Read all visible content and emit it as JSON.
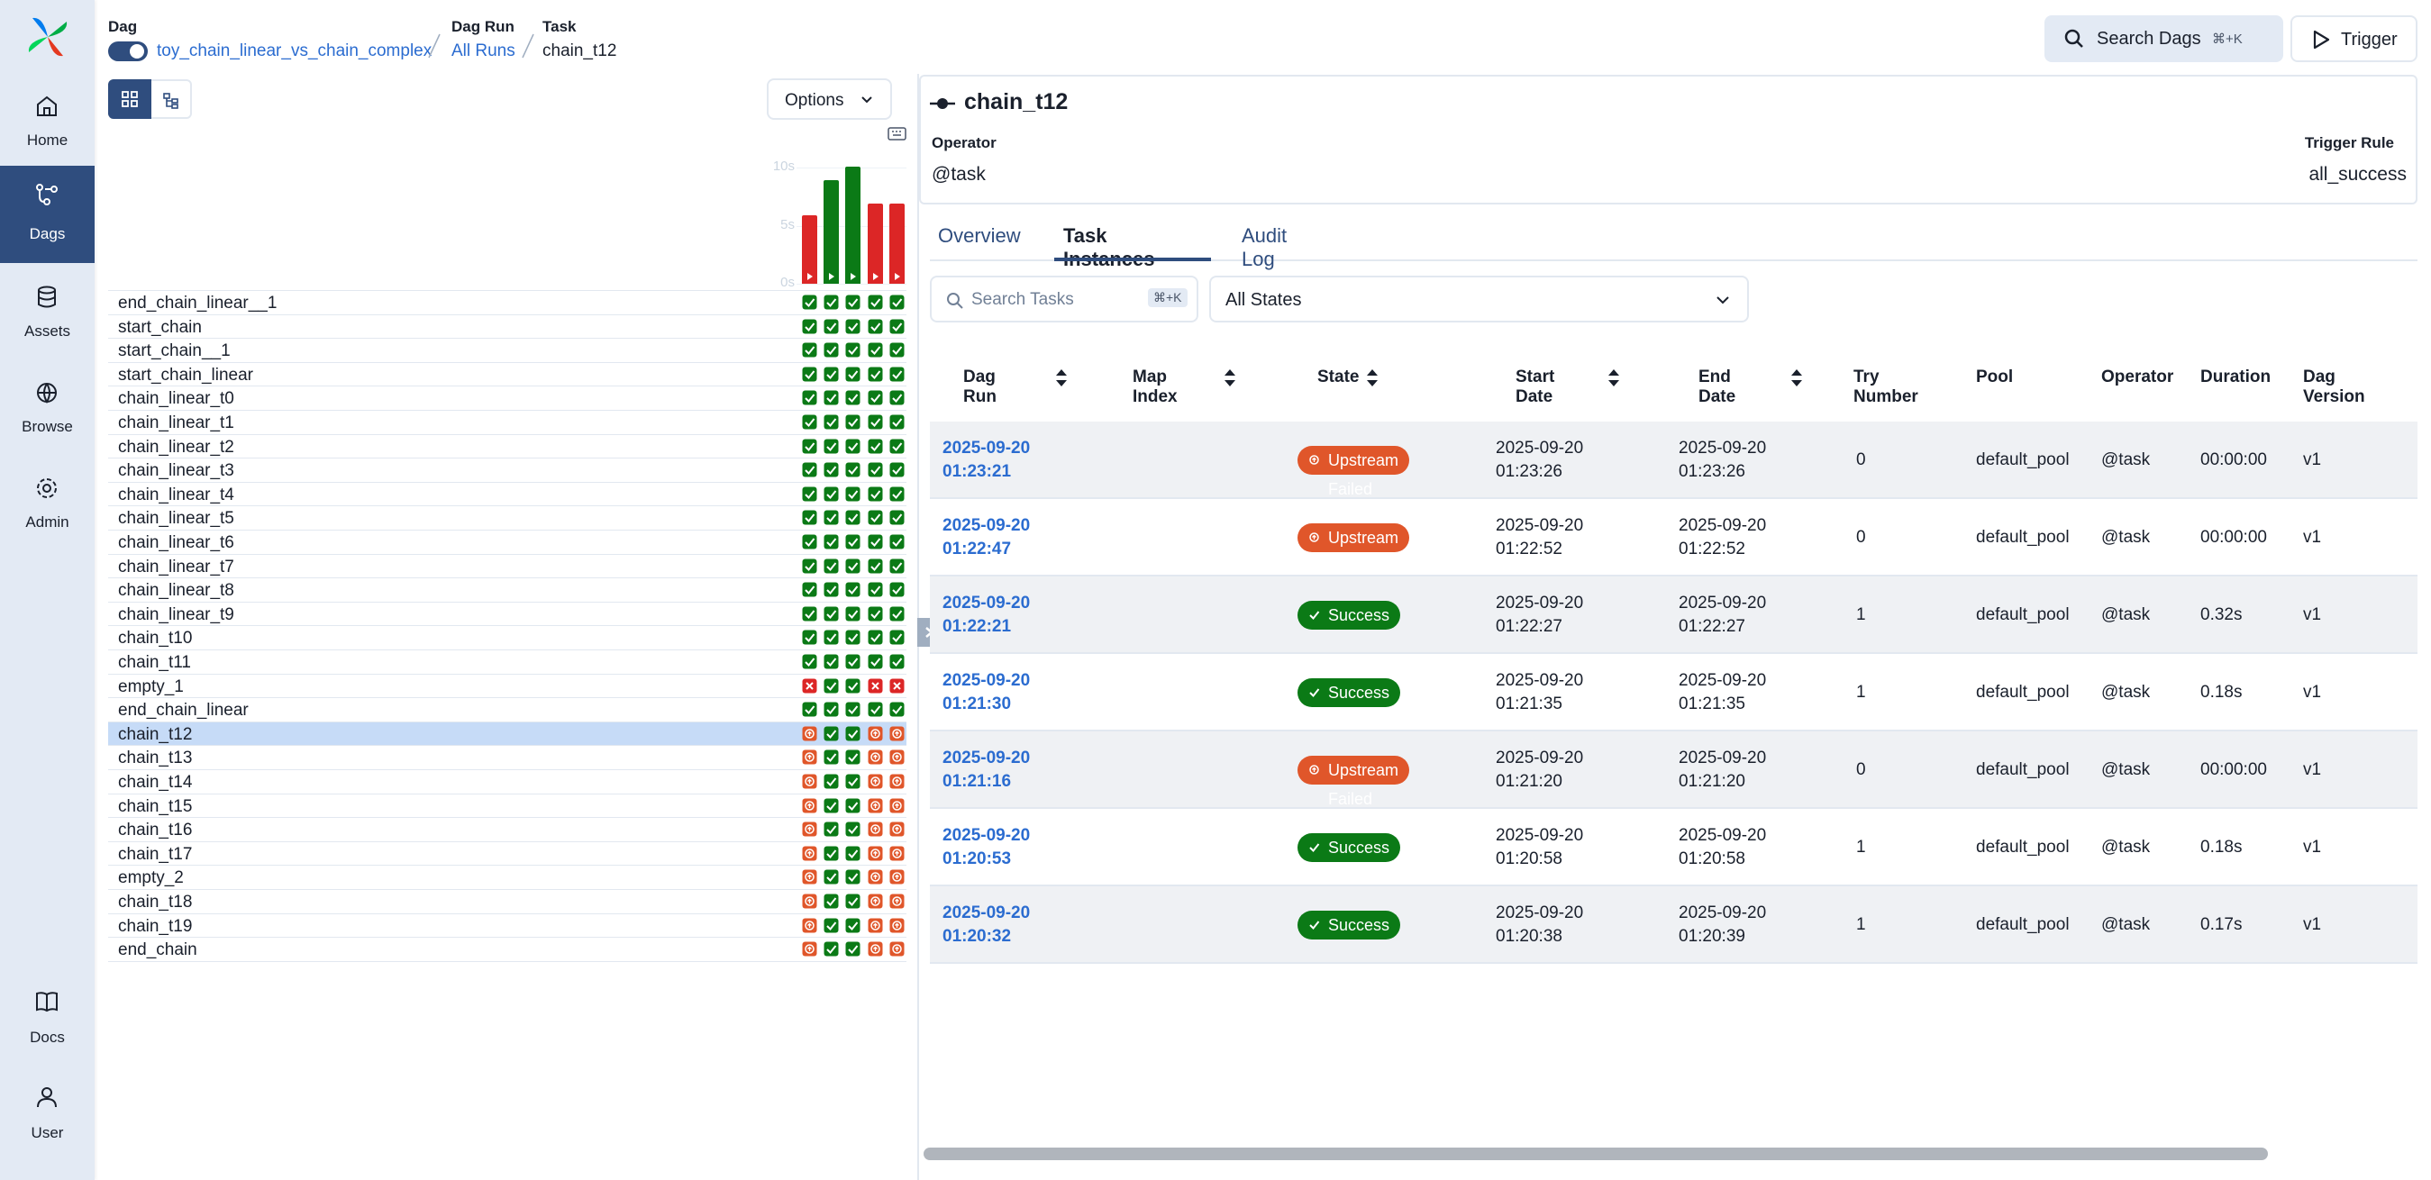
{
  "sidebar": {
    "items": [
      "Home",
      "Dags",
      "Assets",
      "Browse",
      "Admin"
    ],
    "active": 1,
    "bottom": [
      "Docs",
      "User"
    ]
  },
  "header": {
    "dag_label": "Dag",
    "dag_id": "toy_chain_linear_vs_chain_complex",
    "dag_run_label": "Dag Run",
    "dag_run": "All Runs",
    "task_label": "Task",
    "task": "chain_t12",
    "search": "Search Dags",
    "search_shortcut": "⌘+K",
    "trigger": "Trigger"
  },
  "grid": {
    "options": "Options",
    "state_colors": {
      "success": "#0b7a16",
      "failed": "#dc2626",
      "upstream_failed": "#e0562a"
    },
    "duration_chart": {
      "yticks": [
        {
          "value": 10,
          "label": "10s"
        },
        {
          "value": 5,
          "label": "5s"
        },
        {
          "value": 0,
          "label": "0s"
        }
      ],
      "values": [
        5.9,
        8.9,
        10.1,
        6.9,
        6.9
      ],
      "run_states": [
        "failed",
        "success",
        "success",
        "failed",
        "failed"
      ]
    },
    "selected": 18,
    "tasks": [
      {
        "name": "end_chain_linear__1",
        "states": [
          "success",
          "success",
          "success",
          "success",
          "success"
        ]
      },
      {
        "name": "start_chain",
        "states": [
          "success",
          "success",
          "success",
          "success",
          "success"
        ]
      },
      {
        "name": "start_chain__1",
        "states": [
          "success",
          "success",
          "success",
          "success",
          "success"
        ]
      },
      {
        "name": "start_chain_linear",
        "states": [
          "success",
          "success",
          "success",
          "success",
          "success"
        ]
      },
      {
        "name": "chain_linear_t0",
        "states": [
          "success",
          "success",
          "success",
          "success",
          "success"
        ]
      },
      {
        "name": "chain_linear_t1",
        "states": [
          "success",
          "success",
          "success",
          "success",
          "success"
        ]
      },
      {
        "name": "chain_linear_t2",
        "states": [
          "success",
          "success",
          "success",
          "success",
          "success"
        ]
      },
      {
        "name": "chain_linear_t3",
        "states": [
          "success",
          "success",
          "success",
          "success",
          "success"
        ]
      },
      {
        "name": "chain_linear_t4",
        "states": [
          "success",
          "success",
          "success",
          "success",
          "success"
        ]
      },
      {
        "name": "chain_linear_t5",
        "states": [
          "success",
          "success",
          "success",
          "success",
          "success"
        ]
      },
      {
        "name": "chain_linear_t6",
        "states": [
          "success",
          "success",
          "success",
          "success",
          "success"
        ]
      },
      {
        "name": "chain_linear_t7",
        "states": [
          "success",
          "success",
          "success",
          "success",
          "success"
        ]
      },
      {
        "name": "chain_linear_t8",
        "states": [
          "success",
          "success",
          "success",
          "success",
          "success"
        ]
      },
      {
        "name": "chain_linear_t9",
        "states": [
          "success",
          "success",
          "success",
          "success",
          "success"
        ]
      },
      {
        "name": "chain_t10",
        "states": [
          "success",
          "success",
          "success",
          "success",
          "success"
        ]
      },
      {
        "name": "chain_t11",
        "states": [
          "success",
          "success",
          "success",
          "success",
          "success"
        ]
      },
      {
        "name": "empty_1",
        "states": [
          "failed",
          "success",
          "success",
          "failed",
          "failed"
        ]
      },
      {
        "name": "end_chain_linear",
        "states": [
          "success",
          "success",
          "success",
          "success",
          "success"
        ]
      },
      {
        "name": "chain_t12",
        "states": [
          "upstream_failed",
          "success",
          "success",
          "upstream_failed",
          "upstream_failed"
        ]
      },
      {
        "name": "chain_t13",
        "states": [
          "upstream_failed",
          "success",
          "success",
          "upstream_failed",
          "upstream_failed"
        ]
      },
      {
        "name": "chain_t14",
        "states": [
          "upstream_failed",
          "success",
          "success",
          "upstream_failed",
          "upstream_failed"
        ]
      },
      {
        "name": "chain_t15",
        "states": [
          "upstream_failed",
          "success",
          "success",
          "upstream_failed",
          "upstream_failed"
        ]
      },
      {
        "name": "chain_t16",
        "states": [
          "upstream_failed",
          "success",
          "success",
          "upstream_failed",
          "upstream_failed"
        ]
      },
      {
        "name": "chain_t17",
        "states": [
          "upstream_failed",
          "success",
          "success",
          "upstream_failed",
          "upstream_failed"
        ]
      },
      {
        "name": "empty_2",
        "states": [
          "upstream_failed",
          "success",
          "success",
          "upstream_failed",
          "upstream_failed"
        ]
      },
      {
        "name": "chain_t18",
        "states": [
          "upstream_failed",
          "success",
          "success",
          "upstream_failed",
          "upstream_failed"
        ]
      },
      {
        "name": "chain_t19",
        "states": [
          "upstream_failed",
          "success",
          "success",
          "upstream_failed",
          "upstream_failed"
        ]
      },
      {
        "name": "end_chain",
        "states": [
          "upstream_failed",
          "success",
          "success",
          "upstream_failed",
          "upstream_failed"
        ]
      }
    ]
  },
  "task_panel": {
    "name": "chain_t12",
    "operator_label": "Operator",
    "operator": "@task",
    "trigger_rule_label": "Trigger Rule",
    "trigger_rule": "all_success"
  },
  "tabs": {
    "items": [
      "Overview",
      "Task Instances",
      "Audit Log"
    ],
    "active": 1
  },
  "filters": {
    "search": "Search Tasks",
    "shortcut": "⌘+K",
    "states": "All States"
  },
  "table": {
    "columns": [
      "Dag Run",
      "Map Index",
      "State",
      "Start Date",
      "End Date",
      "Try Number",
      "Pool",
      "Operator",
      "Duration",
      "Dag Version"
    ],
    "sortable": [
      true,
      true,
      true,
      true,
      true,
      false,
      false,
      false,
      false,
      false
    ],
    "rows": [
      {
        "dag_run": "2025-09-20 01:23:21",
        "state": "Upstream Failed",
        "state_type": "upstream_failed",
        "start": "2025-09-20 01:23:26",
        "end": "2025-09-20 01:23:26",
        "try": "0",
        "pool": "default_pool",
        "operator": "@task",
        "duration": "00:00:00",
        "version": "v1"
      },
      {
        "dag_run": "2025-09-20 01:22:47",
        "state": "Upstream Failed",
        "state_type": "upstream_failed",
        "start": "2025-09-20 01:22:52",
        "end": "2025-09-20 01:22:52",
        "try": "0",
        "pool": "default_pool",
        "operator": "@task",
        "duration": "00:00:00",
        "version": "v1"
      },
      {
        "dag_run": "2025-09-20 01:22:21",
        "state": "Success",
        "state_type": "success",
        "start": "2025-09-20 01:22:27",
        "end": "2025-09-20 01:22:27",
        "try": "1",
        "pool": "default_pool",
        "operator": "@task",
        "duration": "0.32s",
        "version": "v1"
      },
      {
        "dag_run": "2025-09-20 01:21:30",
        "state": "Success",
        "state_type": "success",
        "start": "2025-09-20 01:21:35",
        "end": "2025-09-20 01:21:35",
        "try": "1",
        "pool": "default_pool",
        "operator": "@task",
        "duration": "0.18s",
        "version": "v1"
      },
      {
        "dag_run": "2025-09-20 01:21:16",
        "state": "Upstream Failed",
        "state_type": "upstream_failed",
        "start": "2025-09-20 01:21:20",
        "end": "2025-09-20 01:21:20",
        "try": "0",
        "pool": "default_pool",
        "operator": "@task",
        "duration": "00:00:00",
        "version": "v1"
      },
      {
        "dag_run": "2025-09-20 01:20:53",
        "state": "Success",
        "state_type": "success",
        "start": "2025-09-20 01:20:58",
        "end": "2025-09-20 01:20:58",
        "try": "1",
        "pool": "default_pool",
        "operator": "@task",
        "duration": "0.18s",
        "version": "v1"
      },
      {
        "dag_run": "2025-09-20 01:20:32",
        "state": "Success",
        "state_type": "success",
        "start": "2025-09-20 01:20:38",
        "end": "2025-09-20 01:20:39",
        "try": "1",
        "pool": "default_pool",
        "operator": "@task",
        "duration": "0.17s",
        "version": "v1"
      }
    ]
  }
}
